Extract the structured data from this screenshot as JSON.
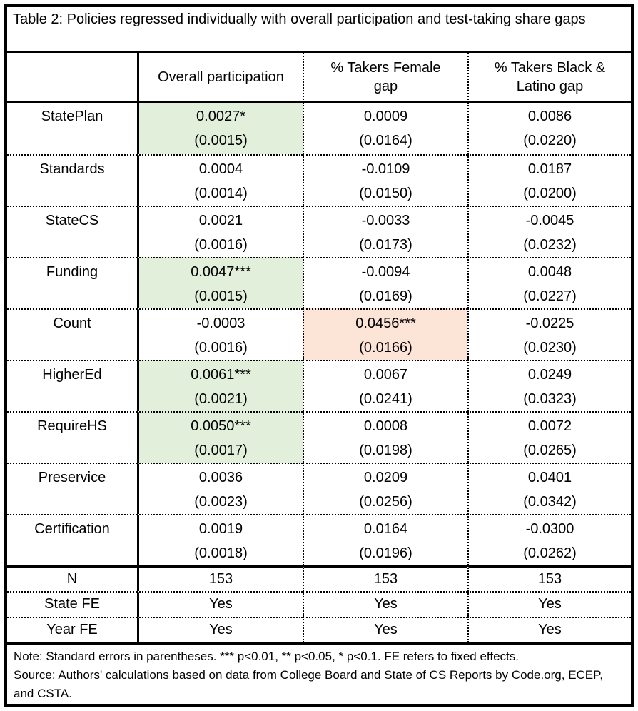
{
  "title": "Table 2: Policies regressed individually with overall participation and test-taking share gaps",
  "columns": [
    "",
    "Overall participation",
    "% Takers Female\ngap",
    "% Takers Black &\nLatino gap"
  ],
  "highlight_colors": {
    "green": "#E2EFDA",
    "orange": "#FCE4D6"
  },
  "rows": [
    {
      "label": "StatePlan",
      "cells": [
        {
          "coef": "0.0027*",
          "se": "(0.0015)",
          "highlight": "green"
        },
        {
          "coef": "0.0009",
          "se": "(0.0164)"
        },
        {
          "coef": "0.0086",
          "se": "(0.0220)"
        }
      ]
    },
    {
      "label": "Standards",
      "cells": [
        {
          "coef": "0.0004",
          "se": "(0.0014)"
        },
        {
          "coef": "-0.0109",
          "se": "(0.0150)"
        },
        {
          "coef": "0.0187",
          "se": "(0.0200)"
        }
      ]
    },
    {
      "label": "StateCS",
      "cells": [
        {
          "coef": "0.0021",
          "se": "(0.0016)"
        },
        {
          "coef": "-0.0033",
          "se": "(0.0173)"
        },
        {
          "coef": "-0.0045",
          "se": "(0.0232)"
        }
      ]
    },
    {
      "label": "Funding",
      "cells": [
        {
          "coef": "0.0047***",
          "se": "(0.0015)",
          "highlight": "green"
        },
        {
          "coef": "-0.0094",
          "se": "(0.0169)"
        },
        {
          "coef": "0.0048",
          "se": "(0.0227)"
        }
      ]
    },
    {
      "label": "Count",
      "cells": [
        {
          "coef": "-0.0003",
          "se": "(0.0016)"
        },
        {
          "coef": "0.0456***",
          "se": "(0.0166)",
          "highlight": "orange"
        },
        {
          "coef": "-0.0225",
          "se": "(0.0230)"
        }
      ]
    },
    {
      "label": "HigherEd",
      "cells": [
        {
          "coef": "0.0061***",
          "se": "(0.0021)",
          "highlight": "green"
        },
        {
          "coef": "0.0067",
          "se": "(0.0241)"
        },
        {
          "coef": "0.0249",
          "se": "(0.0323)"
        }
      ]
    },
    {
      "label": "RequireHS",
      "cells": [
        {
          "coef": "0.0050***",
          "se": "(0.0017)",
          "highlight": "green"
        },
        {
          "coef": "0.0008",
          "se": "(0.0198)"
        },
        {
          "coef": "0.0072",
          "se": "(0.0265)"
        }
      ]
    },
    {
      "label": "Preservice",
      "cells": [
        {
          "coef": "0.0036",
          "se": "(0.0023)"
        },
        {
          "coef": "0.0209",
          "se": "(0.0256)"
        },
        {
          "coef": "0.0401",
          "se": "(0.0342)"
        }
      ]
    },
    {
      "label": "Certification",
      "cells": [
        {
          "coef": "0.0019",
          "se": "(0.0018)"
        },
        {
          "coef": "0.0164",
          "se": "(0.0196)"
        },
        {
          "coef": "-0.0300",
          "se": "(0.0262)"
        }
      ]
    }
  ],
  "stats_rows": [
    {
      "label": "N",
      "values": [
        "153",
        "153",
        "153"
      ]
    },
    {
      "label": "State FE",
      "values": [
        "Yes",
        "Yes",
        "Yes"
      ]
    },
    {
      "label": "Year FE",
      "values": [
        "Yes",
        "Yes",
        "Yes"
      ]
    }
  ],
  "notes": [
    "Note: Standard errors in parentheses. *** p<0.01, ** p<0.05, * p<0.1. FE refers to fixed effects.",
    "Source: Authors' calculations based on data from College Board and State of CS Reports by Code.org, ECEP, and CSTA."
  ]
}
